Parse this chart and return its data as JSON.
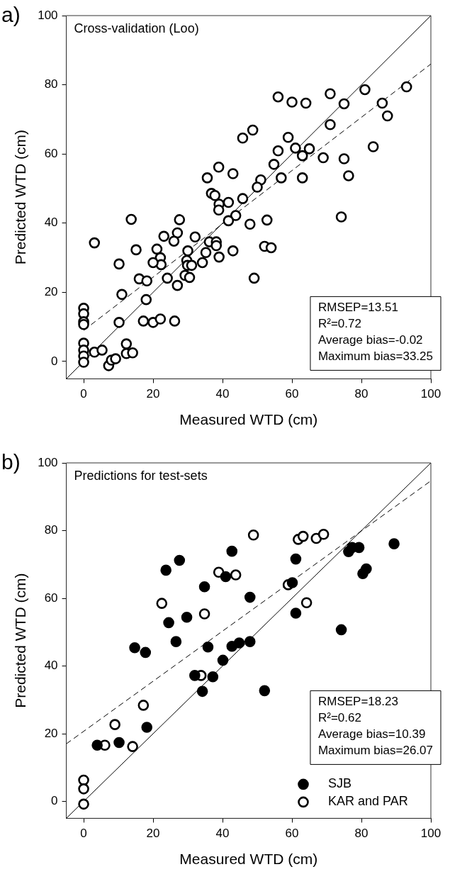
{
  "chart_data": [
    {
      "type": "scatter",
      "title": "a)",
      "xlabel": "Measured WTD (cm)",
      "ylabel": "Predicted WTD (cm)",
      "annotations": [
        "Cross-validation (Loo)",
        "RMSEP=13.51",
        "R²=0.72",
        "Average bias=-0.02",
        "Maximum bias=33.25"
      ],
      "xlim": [
        -5,
        100
      ],
      "ylim": [
        -5,
        100
      ],
      "xticks": [
        0,
        20,
        40,
        60,
        80,
        100
      ],
      "yticks": [
        0,
        20,
        40,
        60,
        80,
        100
      ],
      "grid": false,
      "legend": false,
      "marker": "circle",
      "series": [
        {
          "type": "scatter",
          "color": "#ffffff",
          "x": [
            56,
            60,
            64,
            71,
            75,
            81,
            93,
            86,
            87.5,
            71,
            48.7,
            45.8,
            58.9,
            61,
            65,
            63,
            69,
            75,
            83.4,
            76.3,
            56,
            54.8,
            56.9,
            63,
            51,
            50,
            45.8,
            43,
            38.9,
            41.7,
            74.2,
            52.8,
            47.9,
            43.8,
            41.7,
            35.6,
            36.8,
            37.8,
            39,
            38.9,
            13.7,
            27.6,
            3.1,
            23.1,
            27,
            26,
            32.1,
            36.2,
            38.2,
            38.2,
            35.2,
            30,
            43,
            39,
            52.1,
            54,
            15.1,
            21.1,
            22.1,
            22.3,
            20,
            10.2,
            29.7,
            29.9,
            31.1,
            34.2,
            29.2,
            30.5,
            27,
            24.1,
            16,
            18.2,
            49.1,
            18,
            11,
            10.2,
            17.2,
            20,
            22.1,
            26.2,
            0,
            0,
            0,
            0,
            0,
            0,
            0,
            0,
            3.1,
            5.3,
            7.2,
            8,
            9.2,
            12.3,
            12.3,
            14.1
          ],
          "values": [
            76.5,
            75,
            74.7,
            77.4,
            74.5,
            78.6,
            79.4,
            74.7,
            71,
            68.5,
            66.9,
            64.6,
            64.8,
            61.7,
            61.5,
            59.5,
            58.9,
            58.6,
            62.1,
            53.7,
            60.9,
            57,
            53.1,
            53.1,
            52.5,
            50.4,
            47.1,
            54.3,
            56.2,
            46,
            41.8,
            40.9,
            39.7,
            42.2,
            40.7,
            53.1,
            48.6,
            48,
            45.5,
            43.8,
            41.1,
            41,
            34.3,
            36.2,
            37.2,
            34.8,
            36,
            34.6,
            34.6,
            33.5,
            31.5,
            32,
            32,
            30.2,
            33.3,
            32.9,
            32.3,
            32.5,
            30,
            28,
            28.6,
            28.2,
            29.2,
            27.8,
            27.8,
            28.6,
            24.9,
            24.3,
            22,
            24.1,
            23.9,
            23.3,
            24.1,
            17.9,
            19.4,
            11.3,
            11.7,
            11.3,
            12.3,
            11.7,
            15.4,
            13.8,
            11.5,
            10.7,
            5.3,
            3.3,
            1.6,
            -0.2,
            2.7,
            3.3,
            -1.2,
            0.4,
            0.8,
            5.1,
            2.3,
            2.5
          ]
        },
        {
          "type": "line",
          "color": "#000000",
          "line_style": "solid",
          "marker": "none",
          "x": [
            -5,
            100
          ],
          "values": [
            -5,
            100
          ]
        },
        {
          "type": "line",
          "color": "#000000",
          "line_style": "dashed",
          "marker": "none",
          "x": [
            0,
            100
          ],
          "values": [
            9,
            86
          ]
        }
      ]
    },
    {
      "type": "scatter",
      "title": "b)",
      "xlabel": "Measured WTD (cm)",
      "ylabel": "Predicted WTD (cm)",
      "annotations": [
        "Predictions for test-sets",
        "RMSEP=18.23",
        "R²=0.62",
        "Average bias=10.39",
        "Maximum bias=26.07"
      ],
      "xlim": [
        -5,
        100
      ],
      "ylim": [
        -5,
        100
      ],
      "xticks": [
        0,
        20,
        40,
        60,
        80,
        100
      ],
      "yticks": [
        0,
        20,
        40,
        60,
        80,
        100
      ],
      "grid": false,
      "legend": "bottom right",
      "marker": "circle",
      "series": [
        {
          "type": "scatter",
          "name": "SJB",
          "color": "#000000",
          "x": [
            23.7,
            27.6,
            34.8,
            24.5,
            29.7,
            26.6,
            14.7,
            17.8,
            35.8,
            42.7,
            40.9,
            61.1,
            76.3,
            77.3,
            79.3,
            89.4,
            80.4,
            81.4,
            60.1,
            47.9,
            61.1,
            74.2,
            42.7,
            44.8,
            47.9,
            40.1,
            32,
            37.2,
            34.2,
            52.1,
            18.2,
            3.9,
            10.2
          ],
          "values": [
            68.3,
            71.2,
            63.4,
            52.8,
            54.4,
            47.2,
            45.4,
            44,
            45.6,
            73.9,
            66.4,
            71.6,
            73.8,
            75,
            75,
            76.1,
            67.3,
            68.7,
            64.6,
            60.3,
            55.6,
            50.7,
            45.8,
            46.8,
            47.2,
            41.7,
            37.2,
            36.8,
            32.5,
            32.7,
            21.9,
            16.6,
            17.4
          ]
        },
        {
          "type": "scatter",
          "name": "KAR and PAR",
          "color": "#ffffff",
          "x": [
            22.5,
            34.8,
            38.9,
            43.8,
            48.9,
            61.8,
            63.2,
            67,
            69.1,
            58.9,
            64.2,
            33.8,
            17.2,
            9,
            6.1,
            14.1,
            0,
            0,
            0
          ],
          "values": [
            58.5,
            55.4,
            67.7,
            66.9,
            78.7,
            77.4,
            78.3,
            77.7,
            78.9,
            64,
            58.7,
            37.2,
            28.4,
            22.7,
            16.6,
            16.2,
            6.3,
            3.7,
            -0.8
          ]
        },
        {
          "type": "line",
          "color": "#000000",
          "line_style": "solid",
          "marker": "none",
          "x": [
            -5,
            100
          ],
          "values": [
            -5,
            100
          ]
        },
        {
          "type": "line",
          "color": "#000000",
          "line_style": "dashed",
          "marker": "none",
          "x": [
            -5,
            100
          ],
          "values": [
            17,
            94.7
          ]
        }
      ]
    }
  ]
}
